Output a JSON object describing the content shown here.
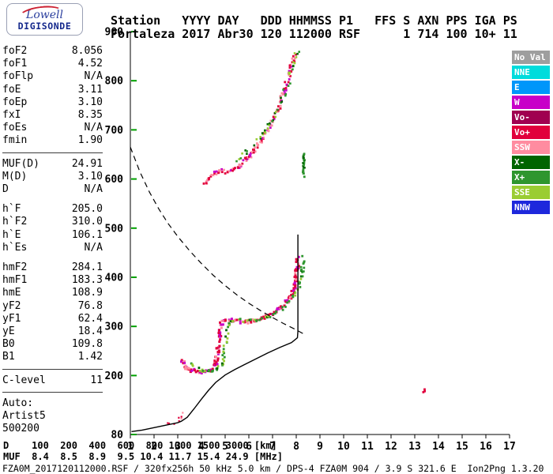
{
  "logo": {
    "line1": "Lowell",
    "line2": "DIGISONDE",
    "lowell_color": "#2b3f9e",
    "digisonde_color": "#14288c",
    "swoosh_color": "#cc2233"
  },
  "header": {
    "line1": "Station   YYYY DAY   DDD HHMMSS P1   FFS S AXN PPS IGA PS",
    "line2": "Fortaleza 2017 Abr30 120 112000 RSF      1 714 100 10+ 11"
  },
  "params": {
    "groups": [
      {
        "divider_after": true,
        "rows": [
          [
            "foF2",
            "8.056"
          ],
          [
            "foF1",
            "4.52"
          ],
          [
            "foFlp",
            "N/A"
          ],
          [
            "foE",
            "3.11"
          ],
          [
            "foEp",
            "3.10"
          ],
          [
            "fxI",
            "8.35"
          ],
          [
            "foEs",
            "N/A"
          ],
          [
            "fmin",
            "1.90"
          ]
        ]
      },
      {
        "divider_after": false,
        "rows": [
          [
            "MUF(D)",
            "24.91"
          ],
          [
            "M(D)",
            "3.10"
          ],
          [
            "D",
            "N/A"
          ]
        ]
      },
      {
        "divider_after": false,
        "rows": [
          [
            "h`F",
            "205.0"
          ],
          [
            "h`F2",
            "310.0"
          ],
          [
            "h`E",
            "106.1"
          ],
          [
            "h`Es",
            "N/A"
          ]
        ]
      },
      {
        "divider_after": true,
        "rows": [
          [
            "hmF2",
            "284.1"
          ],
          [
            "hmF1",
            "183.3"
          ],
          [
            "hmE",
            "108.9"
          ],
          [
            "yF2",
            "76.8"
          ],
          [
            "yF1",
            "62.4"
          ],
          [
            "yE",
            "18.4"
          ],
          [
            "B0",
            "109.8"
          ],
          [
            "B1",
            "1.42"
          ]
        ]
      },
      {
        "divider_after": true,
        "rows": [
          [
            "C-level",
            "11"
          ]
        ]
      },
      {
        "divider_after": false,
        "rows": [
          [
            "Auto:",
            ""
          ],
          [
            "Artist5",
            ""
          ],
          [
            "500200",
            ""
          ]
        ]
      }
    ]
  },
  "legend": {
    "items": [
      {
        "label": "No Val",
        "color": "#9E9E9E"
      },
      {
        "label": "NNE",
        "color": "#00DCDC"
      },
      {
        "label": "E",
        "color": "#0096FA"
      },
      {
        "label": "W",
        "color": "#C800C8"
      },
      {
        "label": "Vo-",
        "color": "#A00050"
      },
      {
        "label": "Vo+",
        "color": "#E1003C"
      },
      {
        "label": "SSW",
        "color": "#FF8CA0"
      },
      {
        "label": "X-",
        "color": "#006400"
      },
      {
        "label": "X+",
        "color": "#2E962E"
      },
      {
        "label": "SSE",
        "color": "#9ACD32"
      },
      {
        "label": "NNW",
        "color": "#1E28DC"
      }
    ]
  },
  "chart_data": {
    "type": "scatter",
    "title": "",
    "xlabel": "[MHz]",
    "ylabel": "[km]",
    "x_axis": {
      "min": 1,
      "max": 17,
      "ticks": [
        1,
        2,
        3,
        4,
        5,
        6,
        7,
        8,
        9,
        10,
        11,
        12,
        13,
        14,
        15,
        16,
        17
      ]
    },
    "y_axis": {
      "min": 80,
      "max": 900,
      "tick_labels": [
        900,
        800,
        700,
        600,
        500,
        400,
        300,
        200,
        80
      ],
      "tick_color": "#00A000"
    },
    "grid": false,
    "legend_position": "right",
    "series": [
      {
        "name": "e-trace-o",
        "render": "speckle",
        "palette": [
          "#E1003C",
          "#E1003C",
          "#FF8CA0"
        ],
        "size": 2.2,
        "per_step": 1,
        "skip": 0.35,
        "jitter": 1.8,
        "points": [
          [
            2.6,
            104
          ],
          [
            2.8,
            103
          ],
          [
            3.0,
            106
          ],
          [
            3.1,
            112
          ],
          [
            3.18,
            124
          ]
        ]
      },
      {
        "name": "f-trace-o",
        "render": "speckle",
        "palette": [
          "#E1003C",
          "#E1003C",
          "#E1003C",
          "#FF8CA0",
          "#C800C8"
        ],
        "size": 3,
        "per_step": 2,
        "skip": 0.2,
        "jitter": 2.2,
        "points": [
          [
            3.2,
            230
          ],
          [
            3.35,
            216
          ],
          [
            3.6,
            211
          ],
          [
            3.9,
            208
          ],
          [
            4.2,
            208
          ],
          [
            4.45,
            211
          ],
          [
            4.6,
            222
          ],
          [
            4.7,
            255
          ],
          [
            4.78,
            290
          ],
          [
            4.85,
            306
          ],
          [
            5.0,
            311
          ],
          [
            5.3,
            312
          ],
          [
            5.6,
            309
          ],
          [
            5.9,
            309
          ],
          [
            6.2,
            312
          ],
          [
            6.5,
            316
          ],
          [
            6.8,
            322
          ],
          [
            7.1,
            330
          ],
          [
            7.4,
            340
          ],
          [
            7.65,
            352
          ],
          [
            7.85,
            368
          ],
          [
            7.98,
            392
          ],
          [
            8.04,
            418
          ],
          [
            8.07,
            438
          ]
        ]
      },
      {
        "name": "f-trace-x",
        "render": "speckle",
        "palette": [
          "#2E962E",
          "#2E962E",
          "#9ACD32",
          "#006400"
        ],
        "size": 2.8,
        "per_step": 1,
        "skip": 0.25,
        "jitter": 2.2,
        "points": [
          [
            3.55,
            224
          ],
          [
            3.75,
            214
          ],
          [
            4.0,
            210
          ],
          [
            4.3,
            209
          ],
          [
            4.6,
            212
          ],
          [
            4.85,
            220
          ],
          [
            4.95,
            248
          ],
          [
            5.05,
            282
          ],
          [
            5.15,
            303
          ],
          [
            5.3,
            310
          ],
          [
            5.6,
            312
          ],
          [
            5.9,
            310
          ],
          [
            6.2,
            311
          ],
          [
            6.5,
            315
          ],
          [
            6.8,
            320
          ],
          [
            7.1,
            327
          ],
          [
            7.4,
            336
          ],
          [
            7.7,
            348
          ],
          [
            7.95,
            364
          ],
          [
            8.15,
            388
          ],
          [
            8.25,
            415
          ],
          [
            8.3,
            445
          ]
        ]
      },
      {
        "name": "second-hop-o",
        "render": "speckle",
        "palette": [
          "#E1003C",
          "#E1003C",
          "#FF8CA0",
          "#FF8CA0",
          "#C800C8"
        ],
        "size": 2.8,
        "per_step": 2,
        "skip": 0.3,
        "jitter": 2.4,
        "points": [
          [
            4.15,
            588
          ],
          [
            4.35,
            602
          ],
          [
            4.55,
            612
          ],
          [
            4.8,
            617
          ],
          [
            5.05,
            614
          ],
          [
            5.3,
            617
          ],
          [
            5.6,
            626
          ],
          [
            5.9,
            640
          ],
          [
            6.2,
            656
          ],
          [
            6.5,
            676
          ],
          [
            6.8,
            700
          ],
          [
            7.1,
            728
          ],
          [
            7.35,
            758
          ],
          [
            7.55,
            788
          ],
          [
            7.72,
            815
          ],
          [
            7.85,
            840
          ],
          [
            7.95,
            856
          ]
        ]
      },
      {
        "name": "second-hop-x",
        "render": "speckle",
        "palette": [
          "#2E962E",
          "#9ACD32",
          "#006400"
        ],
        "size": 2.6,
        "per_step": 1,
        "skip": 0.4,
        "jitter": 2.4,
        "points": [
          [
            5.5,
            640
          ],
          [
            5.9,
            655
          ],
          [
            6.3,
            672
          ],
          [
            6.7,
            695
          ],
          [
            7.0,
            718
          ],
          [
            7.3,
            748
          ],
          [
            7.5,
            775
          ],
          [
            7.7,
            802
          ],
          [
            7.85,
            828
          ],
          [
            7.98,
            850
          ],
          [
            8.05,
            862
          ]
        ]
      },
      {
        "name": "second-hop-x-spur",
        "render": "speckle",
        "palette": [
          "#006400",
          "#2E962E"
        ],
        "size": 2.6,
        "per_step": 2,
        "skip": 0.1,
        "jitter": 1.2,
        "points": [
          [
            8.32,
            606
          ],
          [
            8.33,
            652
          ]
        ]
      },
      {
        "name": "isolated-echo",
        "render": "speckle",
        "palette": [
          "#E1003C"
        ],
        "size": 2.8,
        "per_step": 1,
        "skip": 0,
        "jitter": 0.6,
        "points": [
          [
            13.38,
            166
          ],
          [
            13.42,
            172
          ]
        ]
      },
      {
        "name": "true-height-profile",
        "render": "line",
        "color": "#000000",
        "width": 1.4,
        "points": [
          [
            1.05,
            86
          ],
          [
            1.5,
            89
          ],
          [
            2.0,
            94
          ],
          [
            2.5,
            99
          ],
          [
            3.0,
            104
          ],
          [
            3.15,
            107
          ],
          [
            3.4,
            115
          ],
          [
            3.7,
            133
          ],
          [
            4.0,
            152
          ],
          [
            4.3,
            170
          ],
          [
            4.6,
            186
          ],
          [
            5.0,
            201
          ],
          [
            5.4,
            212
          ],
          [
            5.8,
            222
          ],
          [
            6.3,
            234
          ],
          [
            6.8,
            246
          ],
          [
            7.3,
            257
          ],
          [
            7.8,
            267
          ],
          [
            8.05,
            277
          ],
          [
            8.07,
            290
          ],
          [
            8.07,
            487
          ]
        ]
      },
      {
        "name": "muf-transmission-curve",
        "render": "line",
        "color": "#000000",
        "width": 1.2,
        "dash": "7,5",
        "points": [
          [
            1.0,
            665
          ],
          [
            1.4,
            615
          ],
          [
            1.8,
            574
          ],
          [
            2.2,
            539
          ],
          [
            2.6,
            509
          ],
          [
            3.0,
            483
          ],
          [
            3.5,
            454
          ],
          [
            4.0,
            428
          ],
          [
            4.5,
            404
          ],
          [
            5.0,
            383
          ],
          [
            5.5,
            364
          ],
          [
            6.0,
            347
          ],
          [
            6.5,
            332
          ],
          [
            7.0,
            318
          ],
          [
            7.5,
            305
          ],
          [
            8.0,
            293
          ],
          [
            8.3,
            285
          ]
        ]
      }
    ]
  },
  "footer": {
    "d_line": "D    100  200  400  600  800 1000 1500 3000 [km]",
    "muf_line": "MUF  8.4  8.5  8.9  9.5 10.4 11.7 15.4 24.9 [MHz]",
    "status_line": "FZA0M_2017120112000.RSF / 320fx256h 50 kHz 5.0 km / DPS-4 FZA0M 904 / 3.9 S 321.6 E  Ion2Png 1.3.20"
  }
}
